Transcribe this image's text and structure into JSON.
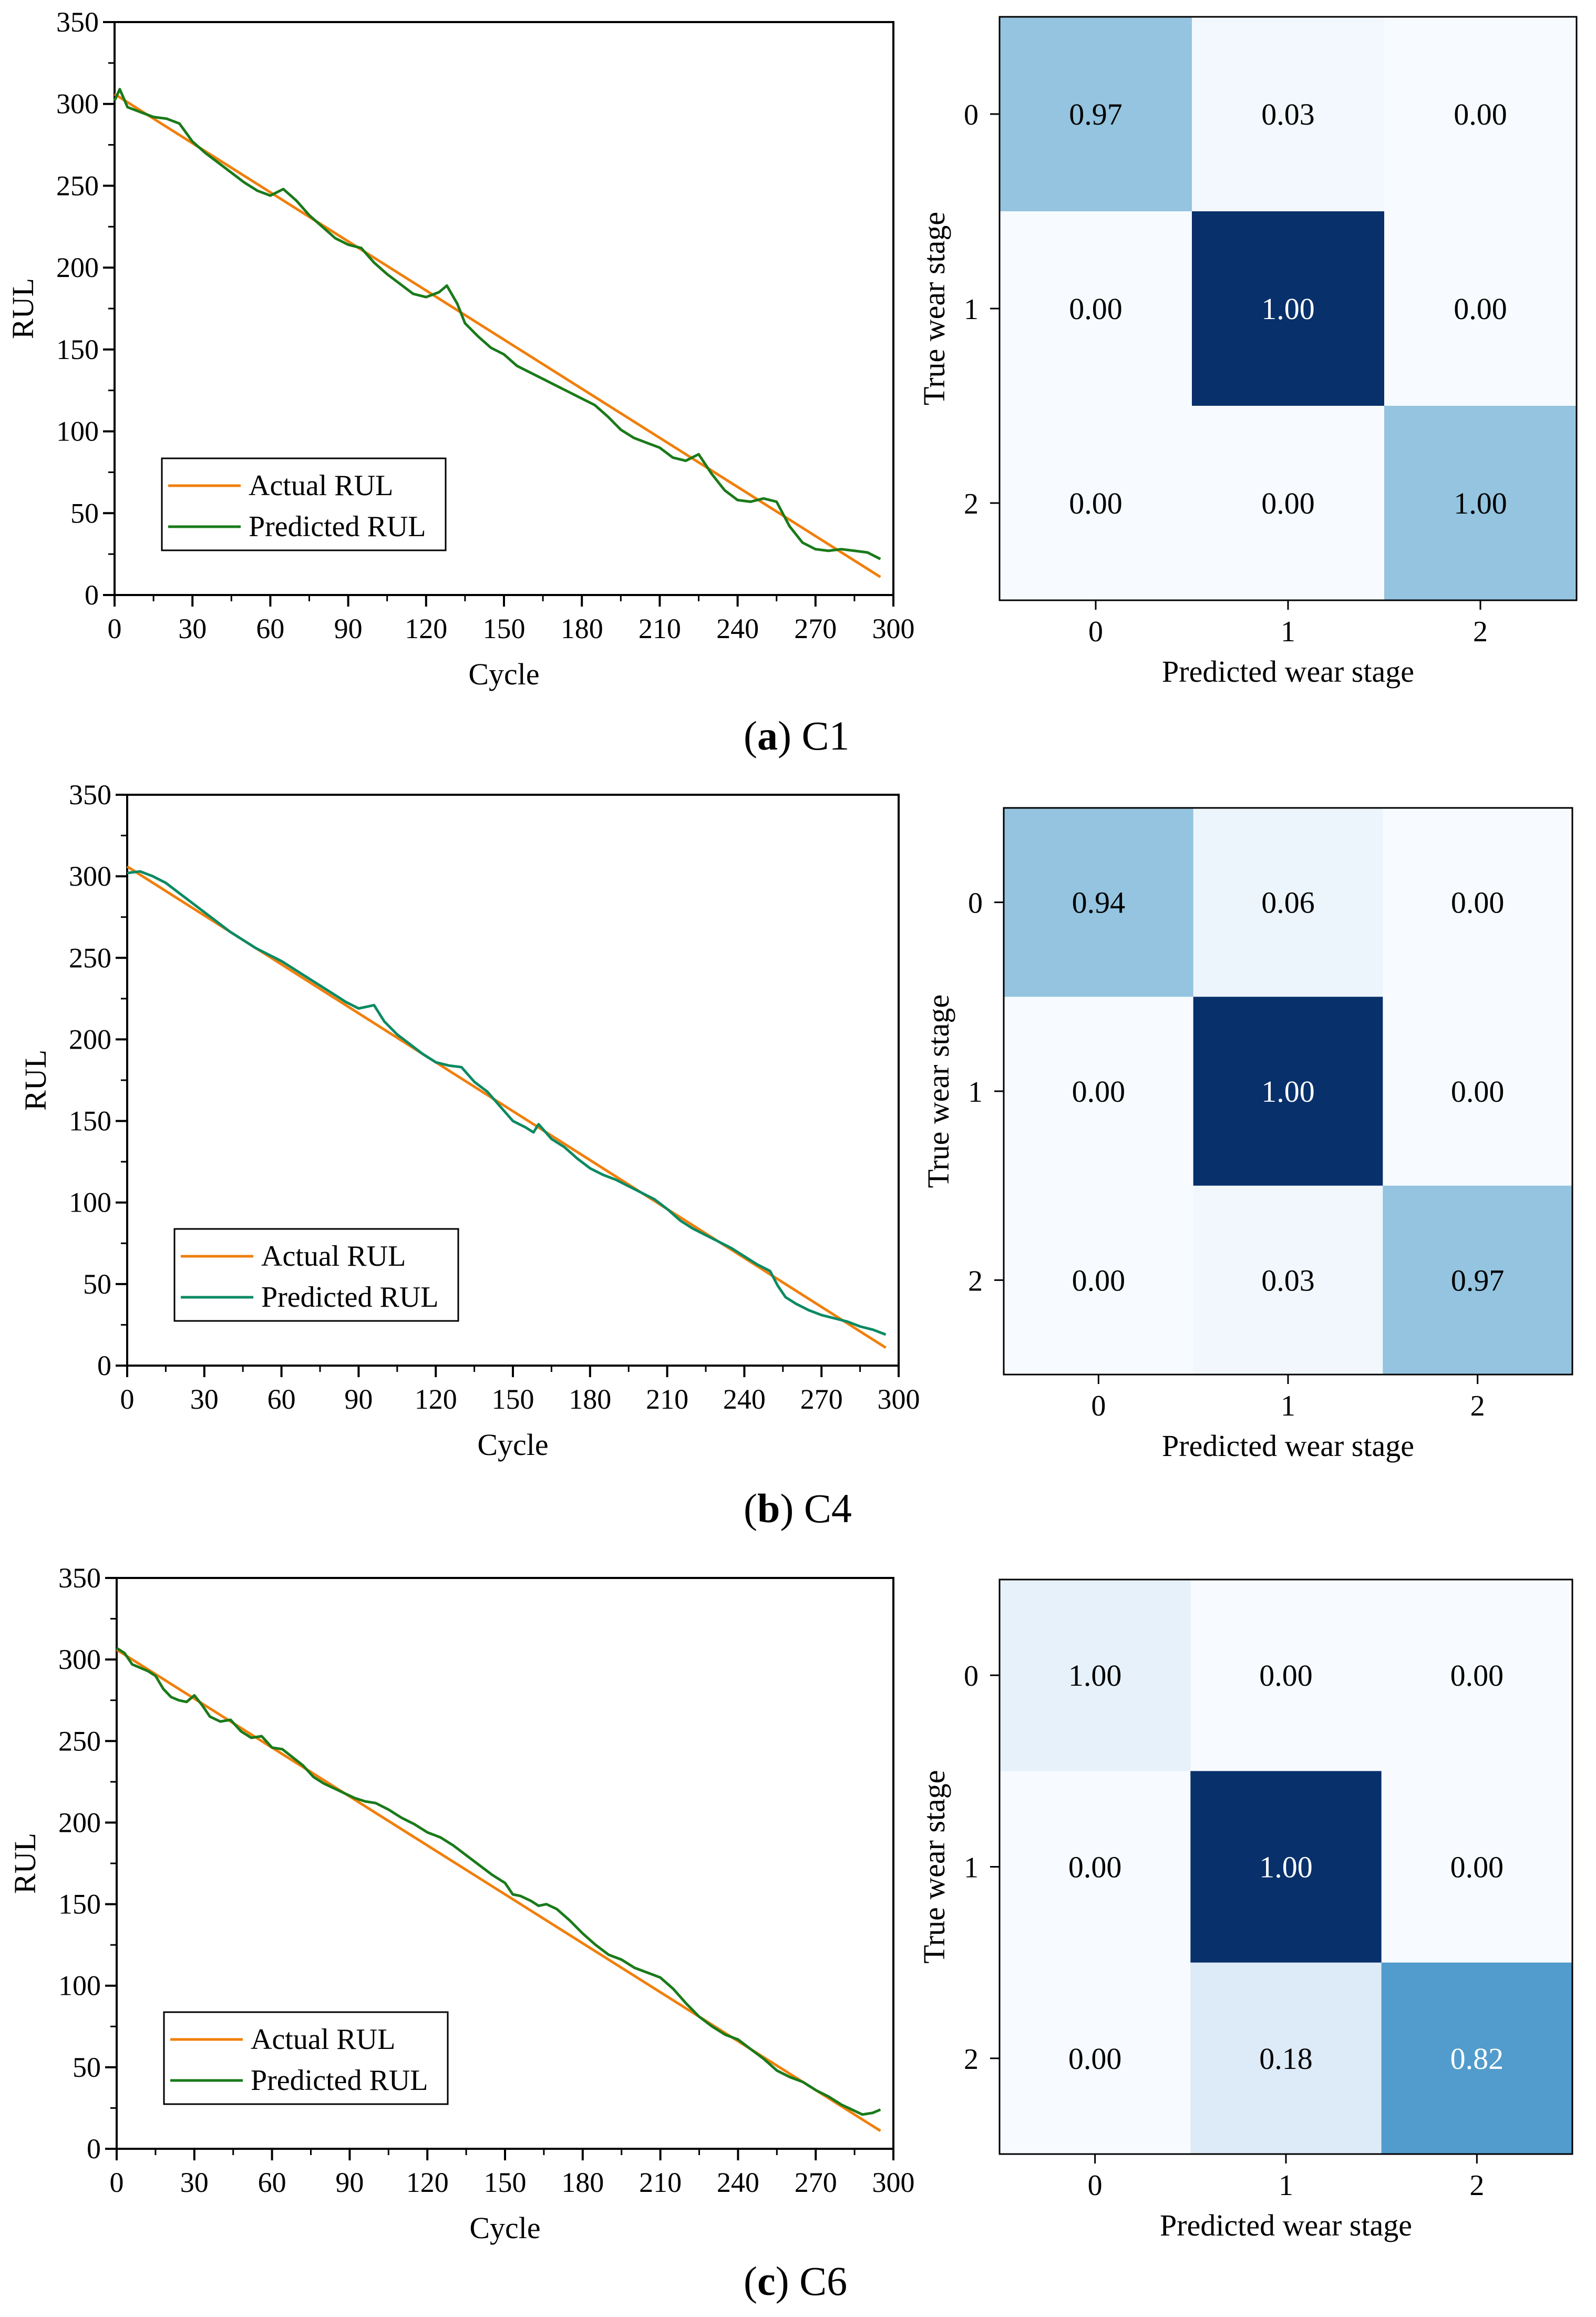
{
  "figure": {
    "panels": [
      {
        "letter": "a",
        "paren_open": "(",
        "paren_close": ")",
        "name": "C1"
      },
      {
        "letter": "b",
        "paren_open": "(",
        "paren_close": ")",
        "name": "C4"
      },
      {
        "letter": "c",
        "paren_open": "(",
        "paren_close": ")",
        "name": "C6"
      }
    ]
  },
  "colors": {
    "actual": "#f07f0c",
    "predicted_c1": "#1a7a1a",
    "predicted_c4": "#0c8a64",
    "predicted_c6": "#1a7a1a",
    "cm_dark": "#08306b",
    "cm_light": "#f7fbff"
  },
  "chart_data": [
    {
      "type": "line",
      "panel": "C1",
      "xlabel": "Cycle",
      "ylabel": "RUL",
      "xlim": [
        0,
        300
      ],
      "ylim": [
        0,
        350
      ],
      "xticks": [
        0,
        30,
        60,
        90,
        120,
        150,
        180,
        210,
        240,
        270,
        300
      ],
      "yticks": [
        0,
        50,
        100,
        150,
        200,
        250,
        300,
        350
      ],
      "legend_position": "bottom-left",
      "series": [
        {
          "name": "Actual RUL",
          "x": [
            0,
            295
          ],
          "y": [
            306,
            11
          ]
        },
        {
          "name": "Predicted RUL",
          "x": [
            0,
            2,
            5,
            10,
            15,
            20,
            25,
            30,
            35,
            40,
            45,
            50,
            55,
            60,
            65,
            70,
            75,
            80,
            85,
            90,
            95,
            100,
            105,
            110,
            115,
            120,
            125,
            128,
            132,
            135,
            140,
            145,
            150,
            155,
            160,
            165,
            170,
            175,
            180,
            185,
            190,
            195,
            200,
            205,
            210,
            215,
            220,
            225,
            230,
            235,
            240,
            245,
            250,
            255,
            260,
            265,
            270,
            275,
            280,
            285,
            290,
            295
          ],
          "y": [
            302,
            309,
            298,
            295,
            292,
            291,
            288,
            277,
            270,
            264,
            258,
            252,
            247,
            244,
            248,
            241,
            232,
            225,
            218,
            214,
            212,
            203,
            196,
            190,
            184,
            182,
            185,
            189,
            178,
            166,
            158,
            151,
            147,
            140,
            136,
            132,
            128,
            124,
            120,
            116,
            109,
            101,
            96,
            93,
            90,
            84,
            82,
            86,
            74,
            64,
            58,
            57,
            59,
            57,
            42,
            32,
            28,
            27,
            28,
            27,
            26,
            22
          ]
        }
      ]
    },
    {
      "type": "heatmap",
      "panel": "C1",
      "xlabel": "Predicted wear stage",
      "ylabel": "True  wear stage",
      "x_labels": [
        "0",
        "1",
        "2"
      ],
      "y_labels": [
        "0",
        "1",
        "2"
      ],
      "values": [
        [
          0.97,
          0.03,
          0.0
        ],
        [
          0.0,
          1.0,
          0.0
        ],
        [
          0.0,
          0.0,
          1.0
        ]
      ],
      "cell_labels": [
        [
          "0.97",
          "0.03",
          "0.00"
        ],
        [
          "0.00",
          "1.00",
          "0.00"
        ],
        [
          "0.00",
          "0.00",
          "1.00"
        ]
      ],
      "fill_values": [
        [
          0.4,
          0.02,
          0.0
        ],
        [
          0.0,
          1.0,
          0.0
        ],
        [
          0.0,
          0.0,
          0.4
        ]
      ]
    },
    {
      "type": "line",
      "panel": "C4",
      "xlabel": "Cycle",
      "ylabel": "RUL",
      "xlim": [
        0,
        300
      ],
      "ylim": [
        0,
        350
      ],
      "xticks": [
        0,
        30,
        60,
        90,
        120,
        150,
        180,
        210,
        240,
        270,
        300
      ],
      "yticks": [
        0,
        50,
        100,
        150,
        200,
        250,
        300,
        350
      ],
      "legend_position": "bottom-left",
      "series": [
        {
          "name": "Actual RUL",
          "x": [
            0,
            295
          ],
          "y": [
            306,
            11
          ]
        },
        {
          "name": "Predicted RUL",
          "x": [
            0,
            5,
            10,
            15,
            20,
            25,
            30,
            35,
            40,
            45,
            50,
            55,
            60,
            65,
            70,
            75,
            80,
            85,
            90,
            93,
            96,
            100,
            105,
            110,
            115,
            120,
            125,
            130,
            135,
            140,
            145,
            150,
            155,
            158,
            160,
            165,
            170,
            175,
            180,
            185,
            190,
            195,
            200,
            205,
            210,
            215,
            220,
            225,
            230,
            235,
            240,
            245,
            250,
            253,
            256,
            260,
            265,
            270,
            275,
            280,
            285,
            290,
            295
          ],
          "y": [
            302,
            303,
            300,
            296,
            290,
            284,
            278,
            272,
            266,
            261,
            256,
            252,
            248,
            243,
            238,
            233,
            228,
            223,
            219,
            220,
            221,
            211,
            203,
            197,
            191,
            186,
            184,
            183,
            174,
            168,
            159,
            150,
            146,
            143,
            148,
            139,
            134,
            127,
            121,
            117,
            114,
            110,
            106,
            102,
            96,
            89,
            84,
            80,
            76,
            72,
            67,
            62,
            58,
            49,
            42,
            38,
            34,
            31,
            29,
            27,
            24,
            22,
            19
          ]
        }
      ]
    },
    {
      "type": "heatmap",
      "panel": "C4",
      "xlabel": "Predicted wear stage",
      "ylabel": "True  wear stage",
      "x_labels": [
        "0",
        "1",
        "2"
      ],
      "y_labels": [
        "0",
        "1",
        "2"
      ],
      "values": [
        [
          0.94,
          0.06,
          0.0
        ],
        [
          0.0,
          1.0,
          0.0
        ],
        [
          0.0,
          0.03,
          0.97
        ]
      ],
      "cell_labels": [
        [
          "0.94",
          "0.06",
          "0.00"
        ],
        [
          "0.00",
          "1.00",
          "0.00"
        ],
        [
          "0.00",
          "0.03",
          "0.97"
        ]
      ],
      "fill_values": [
        [
          0.4,
          0.05,
          0.0
        ],
        [
          0.0,
          1.0,
          0.0
        ],
        [
          0.0,
          0.03,
          0.4
        ]
      ]
    },
    {
      "type": "line",
      "panel": "C6",
      "xlabel": "Cycle",
      "ylabel": "RUL",
      "xlim": [
        0,
        300
      ],
      "ylim": [
        0,
        350
      ],
      "xticks": [
        0,
        30,
        60,
        90,
        120,
        150,
        180,
        210,
        240,
        270,
        300
      ],
      "yticks": [
        0,
        50,
        100,
        150,
        200,
        250,
        300,
        350
      ],
      "legend_position": "bottom-left",
      "series": [
        {
          "name": "Actual RUL",
          "x": [
            0,
            295
          ],
          "y": [
            306,
            11
          ]
        },
        {
          "name": "Predicted RUL",
          "x": [
            0,
            3,
            6,
            9,
            12,
            15,
            18,
            21,
            24,
            27,
            30,
            33,
            36,
            40,
            44,
            48,
            52,
            56,
            60,
            64,
            68,
            72,
            76,
            80,
            84,
            88,
            92,
            96,
            100,
            105,
            110,
            115,
            120,
            125,
            130,
            135,
            140,
            145,
            150,
            153,
            156,
            160,
            163,
            166,
            170,
            175,
            180,
            185,
            190,
            195,
            200,
            205,
            210,
            215,
            220,
            225,
            230,
            235,
            240,
            245,
            250,
            255,
            260,
            265,
            270,
            275,
            280,
            284,
            288,
            292,
            295
          ],
          "y": [
            307,
            304,
            297,
            295,
            293,
            290,
            282,
            277,
            275,
            274,
            278,
            272,
            265,
            262,
            263,
            256,
            252,
            253,
            246,
            245,
            240,
            235,
            228,
            224,
            221,
            218,
            215,
            213,
            212,
            208,
            203,
            199,
            194,
            191,
            186,
            180,
            174,
            168,
            163,
            156,
            155,
            152,
            149,
            150,
            147,
            140,
            132,
            125,
            119,
            116,
            111,
            108,
            105,
            98,
            89,
            81,
            75,
            70,
            67,
            61,
            55,
            48,
            44,
            41,
            36,
            32,
            27,
            24,
            21,
            22,
            24
          ]
        }
      ]
    },
    {
      "type": "heatmap",
      "panel": "C6",
      "xlabel": "Predicted wear stage",
      "ylabel": "True  wear stage",
      "x_labels": [
        "0",
        "1",
        "2"
      ],
      "y_labels": [
        "0",
        "1",
        "2"
      ],
      "values": [
        [
          1.0,
          0.0,
          0.0
        ],
        [
          0.0,
          1.0,
          0.0
        ],
        [
          0.0,
          0.18,
          0.82
        ]
      ],
      "cell_labels": [
        [
          "1.00",
          "0.00",
          "0.00"
        ],
        [
          "0.00",
          "1.00",
          "0.00"
        ],
        [
          "0.00",
          "0.18",
          "0.82"
        ]
      ],
      "fill_values": [
        [
          0.08,
          0.0,
          0.0
        ],
        [
          0.0,
          1.0,
          0.0
        ],
        [
          0.0,
          0.13,
          0.58
        ]
      ]
    }
  ]
}
